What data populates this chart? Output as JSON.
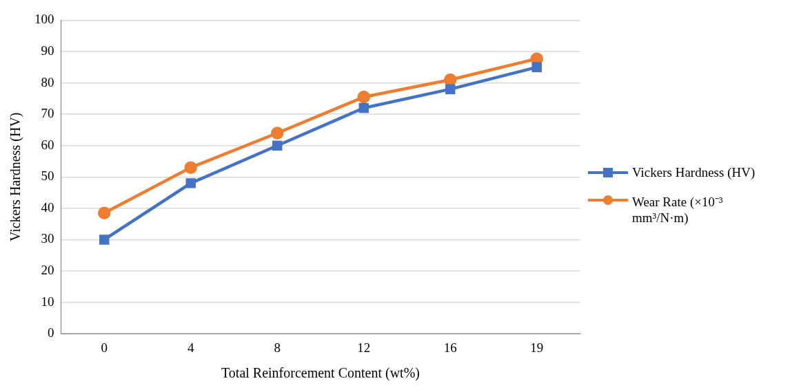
{
  "chart_data": {
    "type": "line",
    "xlabel": "Total Reinforcement Content (wt%)",
    "ylabel": "Vickers Hardness (HV)",
    "categories": [
      "0",
      "4",
      "8",
      "12",
      "16",
      "19"
    ],
    "series": [
      {
        "name": "Vickers Hardness (HV)",
        "color": "#4472c4",
        "marker": "square",
        "values": [
          30,
          48,
          60,
          72,
          78,
          85
        ]
      },
      {
        "name": "Wear Rate (×10⁻³ mm³/N·m)",
        "color": "#ed7d31",
        "marker": "circle",
        "values": [
          38.5,
          53,
          64,
          75.5,
          81,
          87.7
        ]
      }
    ],
    "ylim": [
      0,
      100
    ],
    "yticks": [
      0,
      10,
      20,
      30,
      40,
      50,
      60,
      70,
      80,
      90,
      100
    ],
    "grid": "y",
    "legend": "right",
    "line_style": "solid"
  }
}
